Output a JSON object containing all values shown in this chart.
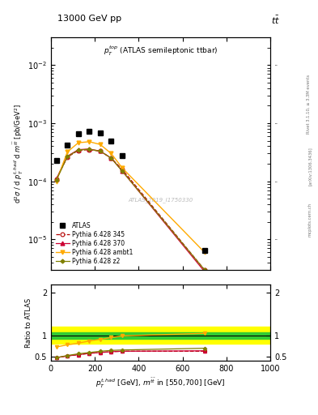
{
  "title_left": "13000 GeV pp",
  "title_right": "tt",
  "annotation_top": "$p_T^{top}$ (ATLAS semileptonic ttbar)",
  "annotation_watermark": "ATLAS_2019_I1750330",
  "rivet_label": "Rivet 3.1.10, ≥ 3.3M events",
  "arxiv_label": "[arXiv:1306.3436]",
  "mcplots_label": "mcplots.cern.ch",
  "xlim": [
    0,
    1000
  ],
  "ylim_main": [
    3e-06,
    0.03
  ],
  "ylim_ratio": [
    0.4,
    2.2
  ],
  "x_atlas": [
    25,
    75,
    125,
    175,
    225,
    275,
    325,
    700
  ],
  "y_atlas": [
    0.00023,
    0.00042,
    0.00065,
    0.00072,
    0.00068,
    0.0005,
    0.00028,
    6.5e-06
  ],
  "x_mc": [
    25,
    75,
    125,
    175,
    225,
    275,
    325,
    700
  ],
  "y_345": [
    0.00011,
    0.00026,
    0.00034,
    0.00035,
    0.00033,
    0.00025,
    0.00016,
    3e-06
  ],
  "y_370": [
    0.00011,
    0.00027,
    0.00035,
    0.00036,
    0.00033,
    0.00025,
    0.00015,
    2.8e-06
  ],
  "y_ambt1": [
    0.0001,
    0.00032,
    0.00046,
    0.00048,
    0.00043,
    0.0003,
    0.00017,
    6e-06
  ],
  "y_z2": [
    0.000105,
    0.000265,
    0.000345,
    0.000355,
    0.00033,
    0.00025,
    0.00015,
    3e-06
  ],
  "r_345": [
    0.48,
    0.52,
    0.55,
    0.58,
    0.6,
    0.62,
    0.63,
    0.63
  ],
  "r_370": [
    0.48,
    0.52,
    0.55,
    0.58,
    0.6,
    0.62,
    0.63,
    0.64
  ],
  "r_ambt1": [
    0.73,
    0.78,
    0.82,
    0.87,
    0.91,
    0.95,
    0.99,
    1.05
  ],
  "r_z2": [
    0.48,
    0.53,
    0.57,
    0.6,
    0.63,
    0.65,
    0.66,
    0.7
  ],
  "band_green_lo": 0.92,
  "band_green_hi": 1.08,
  "band_yellow_lo": 0.8,
  "band_yellow_hi": 1.2,
  "color_atlas": "#000000",
  "color_345": "#b30000",
  "color_370": "#cc0033",
  "color_ambt1": "#ffaa00",
  "color_z2": "#808000",
  "color_green": "#33cc33",
  "color_yellow": "#ffff00"
}
